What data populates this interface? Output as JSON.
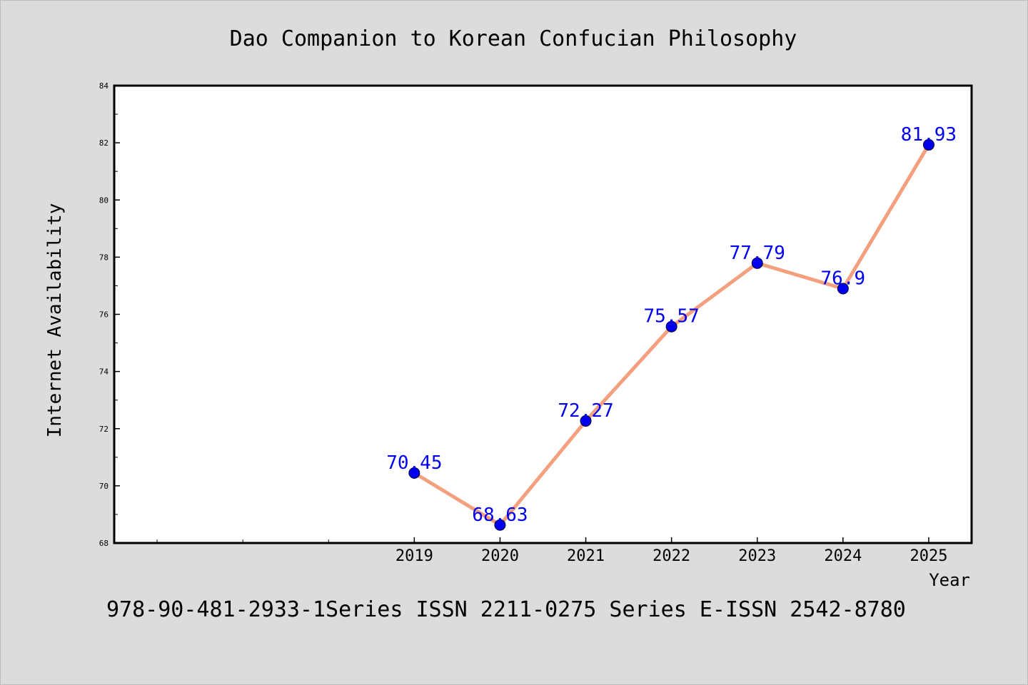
{
  "chart_data": {
    "type": "line",
    "title": "Dao Companion to Korean Confucian Philosophy",
    "xlabel": "Year",
    "ylabel": "Internet Availability",
    "footnote": "978-90-481-2933-1Series ISSN 2211-0275 Series E-ISSN 2542-8780",
    "x": [
      2019,
      2020,
      2021,
      2022,
      2023,
      2024,
      2025
    ],
    "x_tick_labels": [
      "2019",
      "2020",
      "2021",
      "2022",
      "2023",
      "2024",
      "2025"
    ],
    "xlim": [
      2015.5,
      2025.5
    ],
    "ylim": [
      68,
      84
    ],
    "y_ticks": [
      68,
      70,
      72,
      74,
      76,
      78,
      80,
      82,
      84
    ],
    "y_tick_labels": [
      "68",
      "70",
      "72",
      "74",
      "76",
      "78",
      "80",
      "82",
      "84"
    ],
    "series": [
      {
        "values": [
          70.45,
          68.63,
          72.27,
          75.57,
          77.79,
          76.9,
          81.93
        ],
        "value_labels": [
          "70.45",
          "68.63",
          "72.27",
          "75.57",
          "77.79",
          "76.9",
          "81.93"
        ],
        "line_color": "#f4a07e",
        "marker_color": "#0000ee",
        "label_color": "#0000ee"
      }
    ],
    "grid": false,
    "legend": "none",
    "colors": {
      "background": "#dcdcdc",
      "plot_background": "#ffffff",
      "axis": "#000000",
      "text": "#000000"
    }
  }
}
